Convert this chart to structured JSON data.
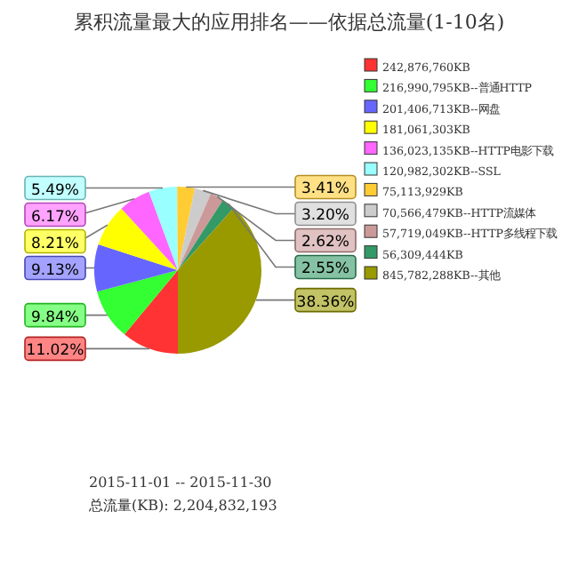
{
  "chart_data": {
    "type": "pie",
    "title": "累积流量最大的应用排名——依据总流量(1-10名)",
    "categories": [
      "242,876,760KB",
      "216,990,795KB--普通HTTP",
      "201,406,713KB--网盘",
      "181,061,303KB",
      "136,023,135KB--HTTP电影下载",
      "120,982,302KB--SSL",
      "75,113,929KB",
      "70,566,479KB--HTTP流媒体",
      "57,719,049KB--HTTP多线程下载",
      "56,309,444KB",
      "845,782,288KB--其他"
    ],
    "values": [
      11.02,
      9.84,
      9.13,
      8.21,
      6.17,
      5.49,
      3.41,
      3.2,
      2.62,
      2.55,
      38.36
    ],
    "colors": [
      "#ff3333",
      "#33ff33",
      "#6666ff",
      "#ffff00",
      "#ff66ff",
      "#99ffff",
      "#ffcc33",
      "#cccccc",
      "#cc9999",
      "#339966",
      "#999900"
    ],
    "value_labels": [
      "11.02%",
      "9.84%",
      "9.13%",
      "8.21%",
      "6.17%",
      "5.49%",
      "3.41%",
      "3.20%",
      "2.62%",
      "2.55%",
      "38.36%"
    ],
    "legend": "right",
    "annotations": [
      "2015-11-01 -- 2015-11-30",
      "总流量(KB): 2,204,832,193"
    ]
  }
}
